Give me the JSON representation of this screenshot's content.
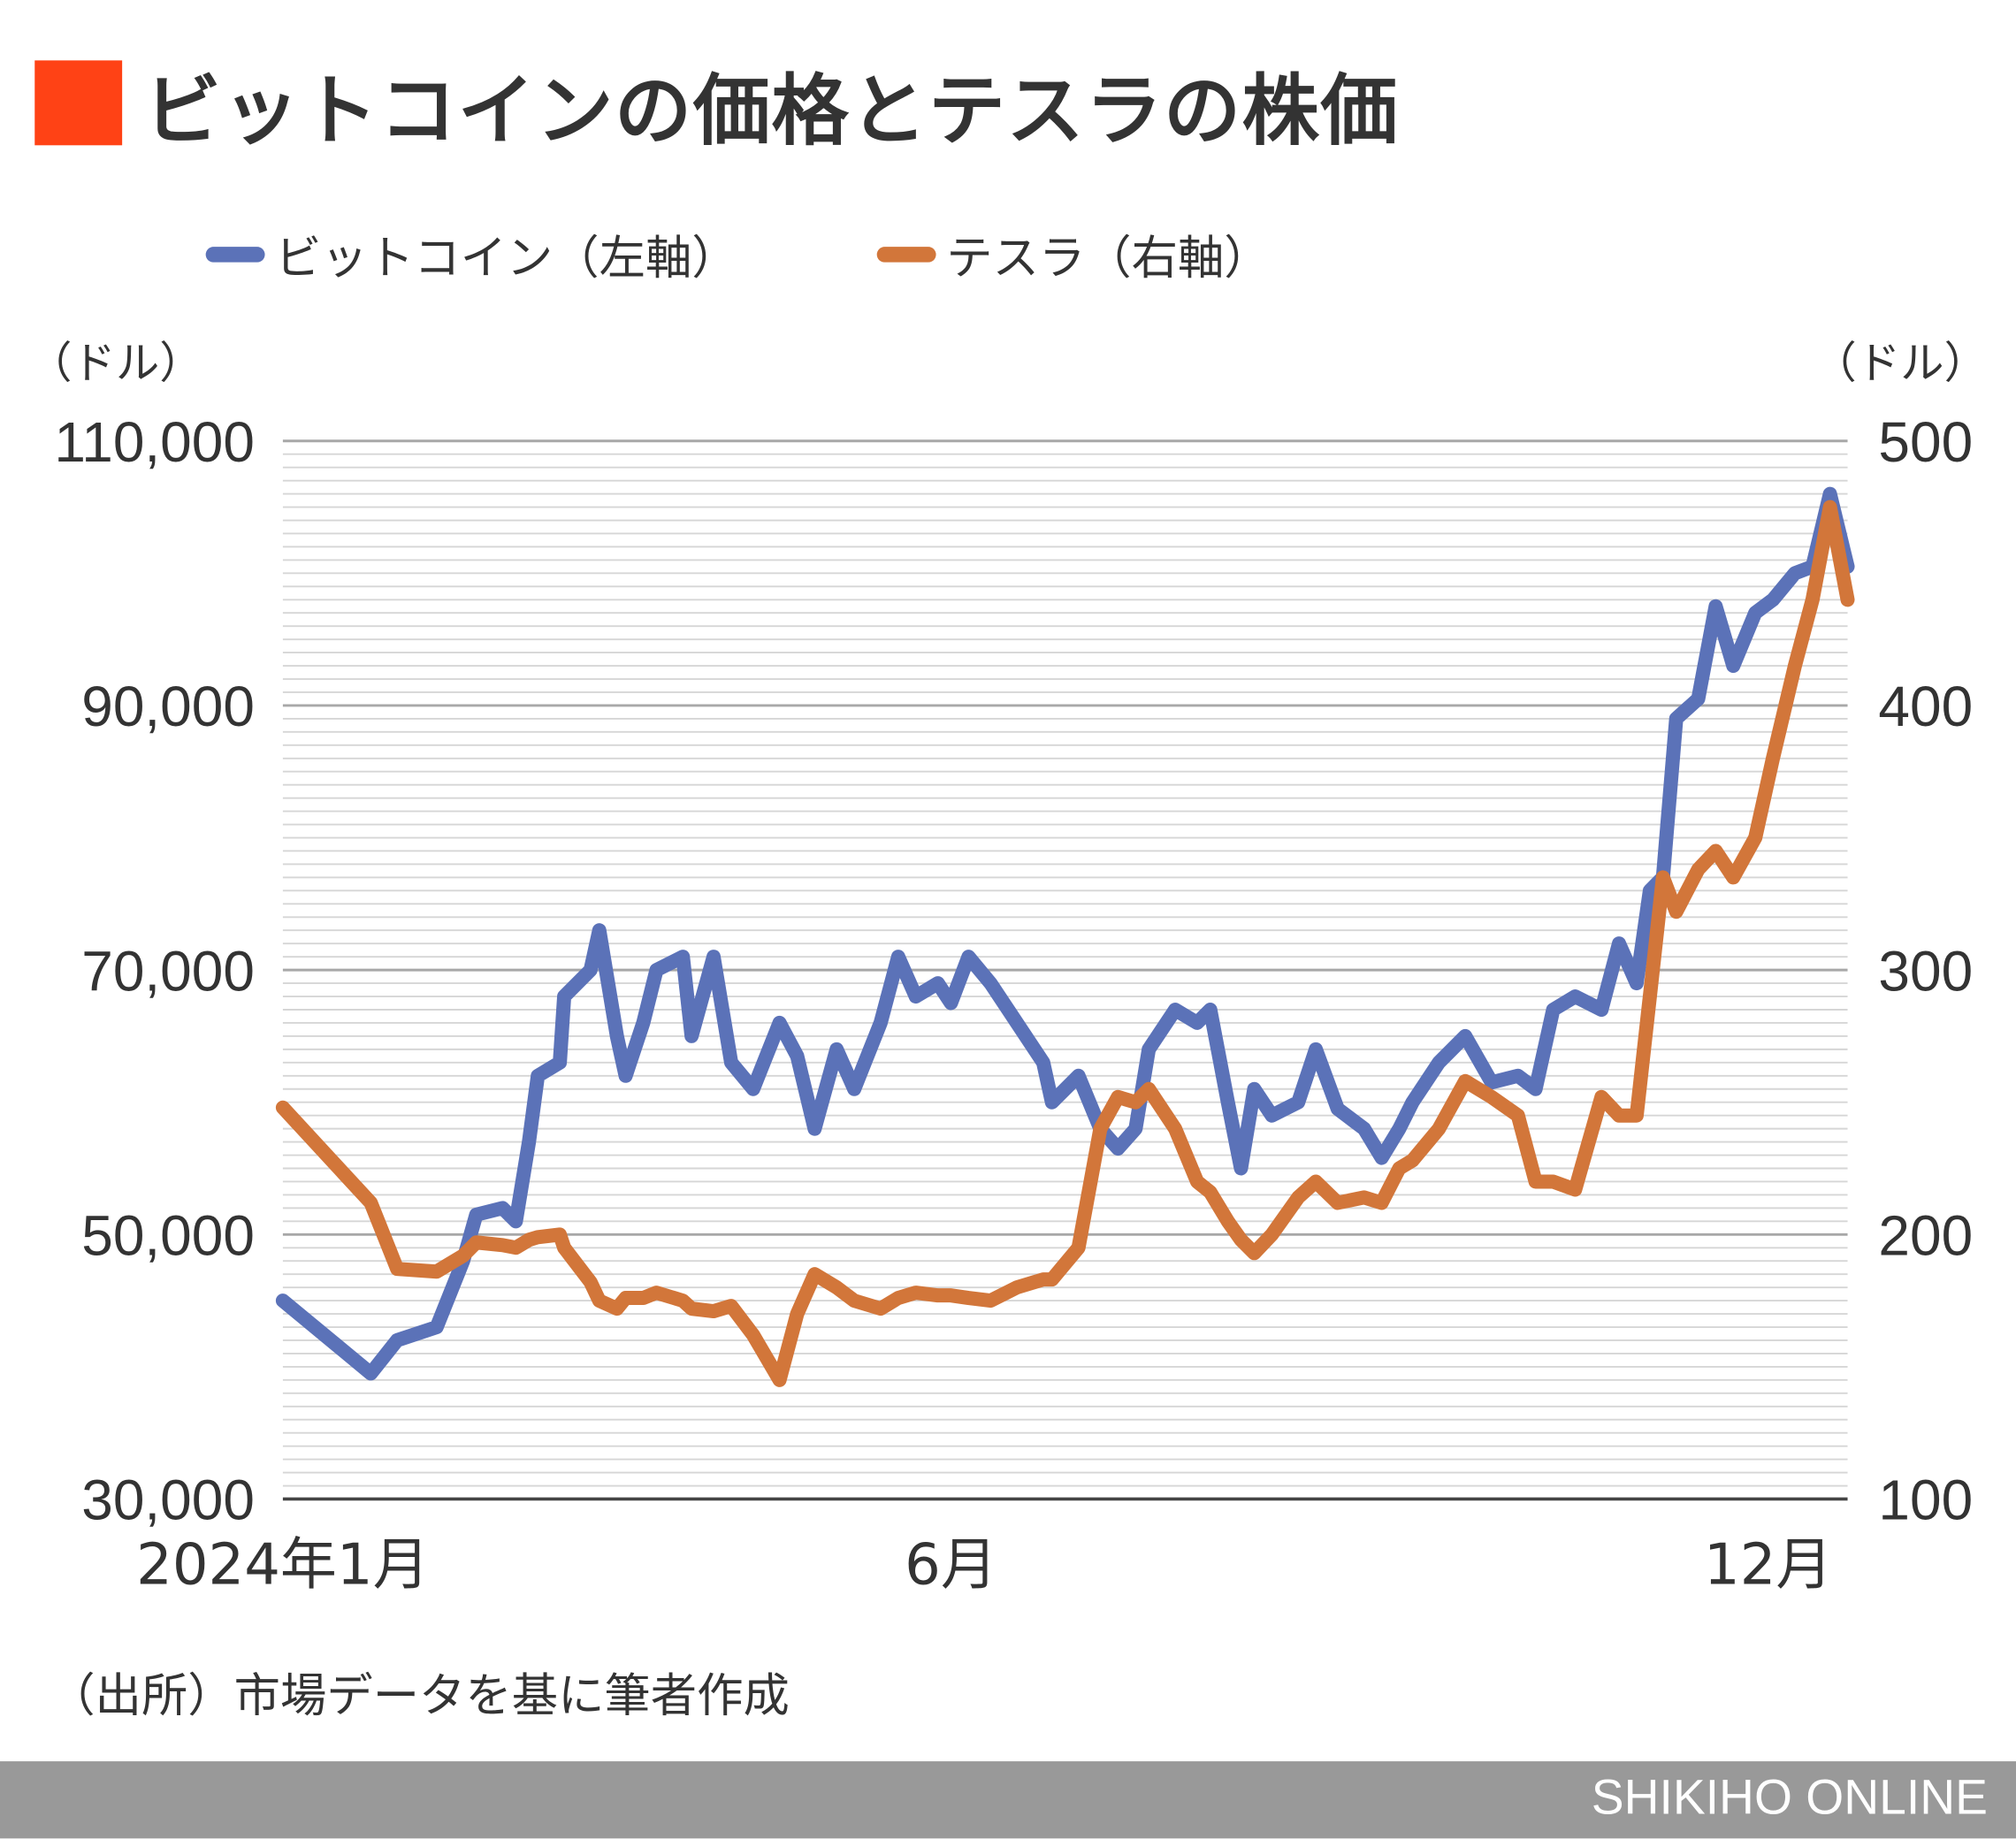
{
  "colors": {
    "title_mark": "#ff4215",
    "bitcoin": "#5b72b8",
    "tesla": "#d2763a",
    "grid_major": "#a8a8a8",
    "grid_minor": "#d6d6d6",
    "footer_bg": "#999999"
  },
  "header": {
    "title": "ビットコインの価格とテスラの株価"
  },
  "footer": {
    "source": "（出所）市場データを基に筆者作成",
    "brand": "SHIKIHO ONLINE"
  },
  "chart_data": {
    "type": "line",
    "title": "ビットコインの価格とテスラの株価",
    "legend": [
      "ビットコイン（左軸）",
      "テスラ（右軸）"
    ],
    "legend_placement": "top",
    "y_left": {
      "unit": "（ドル）",
      "range": [
        30000,
        110000
      ],
      "ticks": [
        "110,000",
        "90,000",
        "70,000",
        "50,000",
        "30,000"
      ],
      "tick_values": [
        110000,
        90000,
        70000,
        50000,
        30000
      ]
    },
    "y_right": {
      "unit": "（ドル）",
      "range": [
        100,
        500
      ],
      "ticks": [
        "500",
        "400",
        "300",
        "200",
        "100"
      ],
      "tick_values": [
        500,
        400,
        300,
        200,
        100
      ]
    },
    "x_axis": {
      "range": [
        "2024-01-01",
        "2024-12-22"
      ],
      "ticks": [
        {
          "label": "2024年1月",
          "date": "2024-01-01"
        },
        {
          "label": "6月",
          "date": "2024-06-01"
        },
        {
          "label": "12月",
          "date": "2024-12-01"
        }
      ]
    },
    "grid": true,
    "dates": [
      "2024-01-01",
      "2024-01-21",
      "2024-01-27",
      "2024-02-05",
      "2024-02-11",
      "2024-02-14",
      "2024-02-20",
      "2024-02-23",
      "2024-02-26",
      "2024-02-28",
      "2024-03-04",
      "2024-03-05",
      "2024-03-11",
      "2024-03-13",
      "2024-03-17",
      "2024-03-19",
      "2024-03-23",
      "2024-03-26",
      "2024-04-01",
      "2024-04-03",
      "2024-04-08",
      "2024-04-12",
      "2024-04-17",
      "2024-04-23",
      "2024-04-27",
      "2024-05-01",
      "2024-05-06",
      "2024-05-10",
      "2024-05-16",
      "2024-05-20",
      "2024-05-24",
      "2024-05-29",
      "2024-06-01",
      "2024-06-05",
      "2024-06-10",
      "2024-06-16",
      "2024-06-22",
      "2024-06-24",
      "2024-06-30",
      "2024-07-05",
      "2024-07-09",
      "2024-07-13",
      "2024-07-16",
      "2024-07-22",
      "2024-07-27",
      "2024-07-30",
      "2024-08-03",
      "2024-08-06",
      "2024-08-09",
      "2024-08-13",
      "2024-08-19",
      "2024-08-23",
      "2024-08-28",
      "2024-09-03",
      "2024-09-07",
      "2024-09-11",
      "2024-09-14",
      "2024-09-20",
      "2024-09-26",
      "2024-10-02",
      "2024-10-08",
      "2024-10-12",
      "2024-10-16",
      "2024-10-21",
      "2024-10-27",
      "2024-10-31",
      "2024-11-04",
      "2024-11-07",
      "2024-11-10",
      "2024-11-13",
      "2024-11-18",
      "2024-11-22",
      "2024-11-26",
      "2024-12-01",
      "2024-12-05",
      "2024-12-10",
      "2024-12-14",
      "2024-12-18",
      "2024-12-22"
    ],
    "series": [
      {
        "name": "ビットコイン（左軸）",
        "axis": "left",
        "values": [
          45000,
          39500,
          42000,
          43000,
          48000,
          51500,
          52000,
          51000,
          57000,
          62000,
          63000,
          68000,
          70000,
          73000,
          65000,
          62000,
          66000,
          70000,
          71000,
          65000,
          71000,
          63000,
          61000,
          66000,
          63500,
          58000,
          64000,
          61000,
          66000,
          71000,
          68000,
          69000,
          67500,
          71000,
          69000,
          66000,
          63000,
          60000,
          62000,
          58000,
          56500,
          58000,
          64000,
          67000,
          66000,
          67000,
          60000,
          55000,
          61000,
          59000,
          60000,
          64000,
          59500,
          58000,
          55800,
          58000,
          60000,
          63000,
          65000,
          61500,
          62000,
          61000,
          67000,
          68000,
          67000,
          72000,
          69000,
          76000,
          77000,
          89000,
          90500,
          97500,
          93000,
          97000,
          98000,
          100000,
          100500,
          106000,
          100500
        ]
      },
      {
        "name": "テスラ（右軸）",
        "axis": "right",
        "values": [
          248,
          212,
          187,
          186,
          192,
          197,
          196,
          195,
          198,
          199,
          200,
          195,
          182,
          175,
          172,
          176,
          176,
          178,
          175,
          172,
          171,
          173,
          162,
          145,
          170,
          185,
          180,
          175,
          172,
          176,
          178,
          177,
          177,
          176,
          175,
          180,
          183,
          183,
          195,
          240,
          252,
          250,
          255,
          240,
          220,
          216,
          205,
          198,
          193,
          200,
          214,
          220,
          212,
          214,
          212,
          225,
          228,
          240,
          258,
          252,
          245,
          220,
          220,
          217,
          252,
          245,
          245,
          290,
          335,
          322,
          338,
          345,
          335,
          350,
          380,
          415,
          440,
          475,
          440
        ]
      }
    ]
  }
}
